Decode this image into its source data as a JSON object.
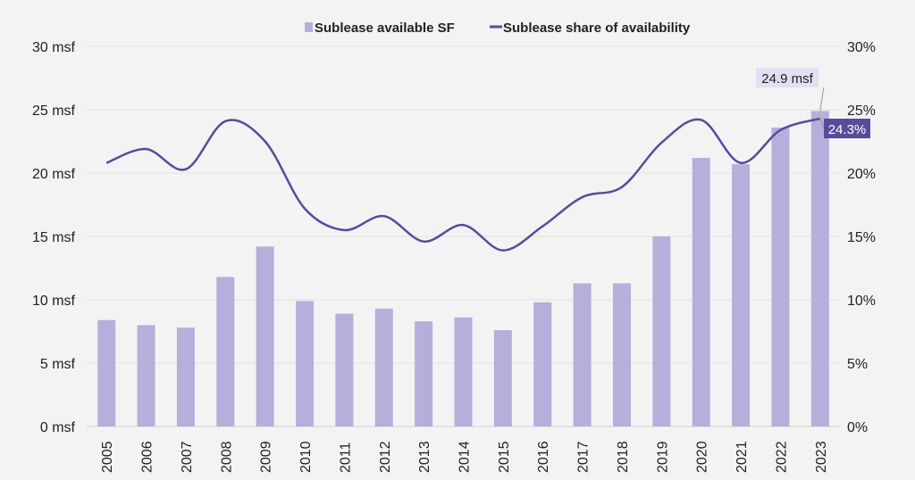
{
  "chart_data": {
    "type": "bar",
    "title": "",
    "xlabel": "",
    "ylabel": "",
    "categories": [
      "2005",
      "2006",
      "2007",
      "2008",
      "2009",
      "2010",
      "2011",
      "2012",
      "2013",
      "2014",
      "2015",
      "2016",
      "2017",
      "2018",
      "2019",
      "2020",
      "2021",
      "2022",
      "2023"
    ],
    "ylim": [
      0,
      30
    ],
    "y2lim": [
      0,
      30
    ],
    "y_ticks": [
      "0 msf",
      "5 msf",
      "10 msf",
      "15 msf",
      "20 msf",
      "25 msf",
      "30 msf"
    ],
    "y2_ticks": [
      "0%",
      "5%",
      "10%",
      "15%",
      "20%",
      "25%",
      "30%"
    ],
    "grid": true,
    "legend_position": "top-center",
    "series": [
      {
        "name": "Sublease available SF",
        "type": "bar",
        "axis": "left",
        "color": "#b7aedb",
        "values": [
          8.4,
          8.0,
          7.8,
          11.8,
          14.2,
          9.9,
          8.9,
          9.3,
          8.3,
          8.6,
          7.6,
          9.8,
          11.3,
          11.3,
          15.0,
          21.2,
          20.7,
          23.6,
          24.9
        ]
      },
      {
        "name": "Sublease share of availability",
        "type": "line",
        "axis": "right",
        "color": "#5b4a9b",
        "values": [
          20.8,
          21.9,
          20.3,
          24.1,
          22.5,
          17.2,
          15.5,
          16.6,
          14.6,
          15.9,
          13.9,
          15.8,
          18.1,
          18.9,
          22.4,
          24.2,
          20.8,
          23.4,
          24.3
        ]
      }
    ],
    "annotations": [
      {
        "text": "24.9 msf",
        "series": 0,
        "index": 18,
        "bg": "#e3def2",
        "fg": "#222222"
      },
      {
        "text": "24.3%",
        "series": 1,
        "index": 18,
        "bg": "#5b4a9b",
        "fg": "#ffffff"
      }
    ]
  }
}
